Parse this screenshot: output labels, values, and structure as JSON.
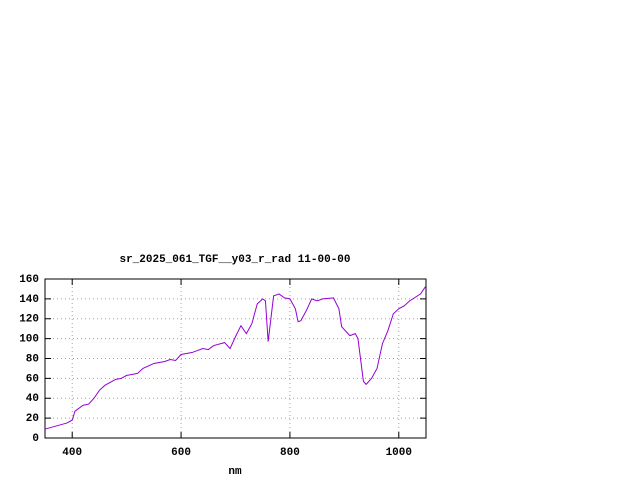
{
  "chart_data": {
    "type": "line",
    "title": "sr_2025_061_TGF__y03_r_rad 11-00-00",
    "x_label": "nm",
    "x": [
      350,
      370,
      390,
      400,
      405,
      420,
      430,
      440,
      450,
      460,
      470,
      480,
      490,
      500,
      520,
      530,
      550,
      570,
      580,
      590,
      600,
      620,
      640,
      650,
      660,
      680,
      690,
      700,
      710,
      720,
      730,
      740,
      750,
      755,
      760,
      770,
      780,
      790,
      800,
      810,
      815,
      820,
      830,
      840,
      850,
      860,
      880,
      890,
      895,
      910,
      920,
      925,
      935,
      940,
      950,
      960,
      970,
      980,
      990,
      1000,
      1010,
      1020,
      1040,
      1050
    ],
    "series": [
      {
        "color": "#9400d3",
        "values": [
          9,
          12,
          15,
          18,
          27,
          33,
          34,
          40,
          48,
          53,
          56,
          59,
          60,
          63,
          65,
          70,
          75,
          77,
          79,
          78,
          84,
          86,
          90,
          89,
          93,
          96,
          90,
          102,
          113,
          105,
          115,
          135,
          140,
          138,
          97,
          143,
          145,
          141,
          140,
          130,
          117,
          118,
          128,
          140,
          138,
          140,
          141,
          130,
          112,
          103,
          105,
          100,
          57,
          54,
          60,
          70,
          95,
          108,
          125,
          130,
          133,
          138,
          145,
          153
        ]
      }
    ],
    "xlim": [
      350,
      1050
    ],
    "ylim": [
      0,
      160
    ],
    "xticks": [
      400,
      600,
      800,
      1000
    ],
    "yticks": [
      0,
      20,
      40,
      60,
      80,
      100,
      120,
      140,
      160
    ],
    "grid": true
  }
}
